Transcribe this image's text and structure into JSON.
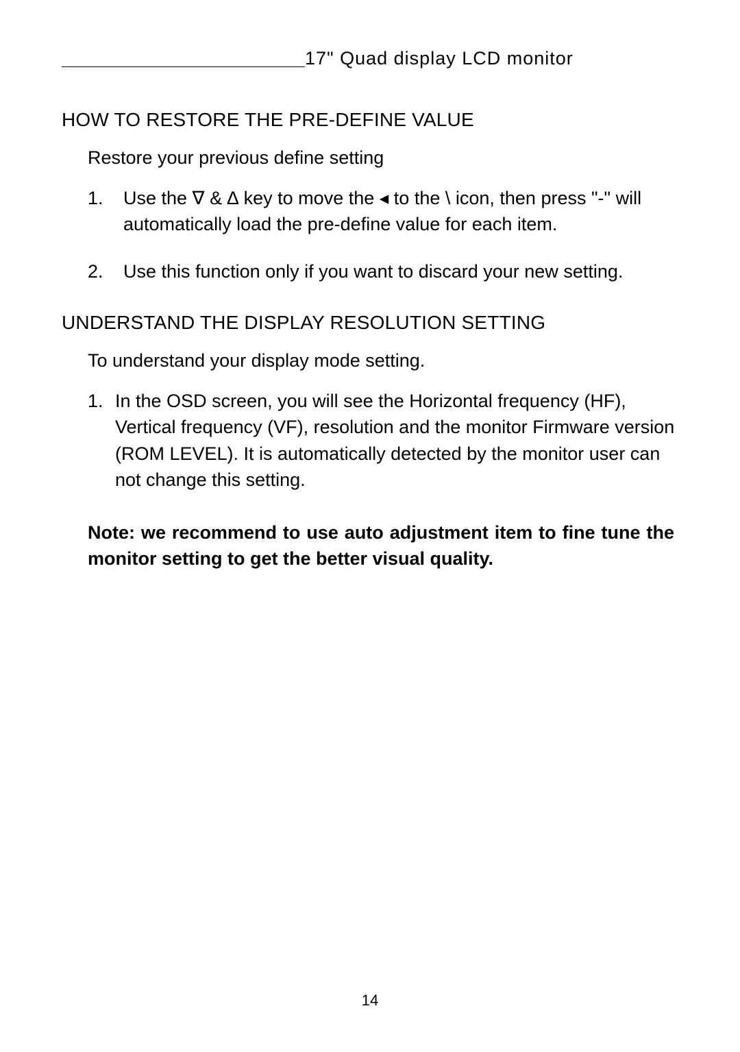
{
  "header": {
    "title": "17\" Quad display LCD monitor"
  },
  "sections": [
    {
      "heading": "HOW TO RESTORE THE PRE-DEFINE VALUE",
      "intro": "Restore your previous define setting",
      "items": [
        {
          "num": "1.",
          "text": "Use the ∇ & ∆ key to move the ◂ to the    \\     icon, then press \"-\"  will automatically load the pre-define value for each item."
        },
        {
          "num": "2.",
          "text": "Use this function only if you want to discard your new setting."
        }
      ]
    },
    {
      "heading": "UNDERSTAND THE DISPLAY RESOLUTION SETTING",
      "intro": "To understand your display mode setting.",
      "items": [
        {
          "num": "1.",
          "text": "In the OSD screen, you will see the Horizontal frequency (HF), Vertical frequency (VF), resolution and the monitor Firmware version (ROM LEVEL). It is automatically detected by the monitor user can not change this setting."
        }
      ]
    }
  ],
  "note": "Note: we recommend to use auto adjustment item to fine tune the monitor setting to get the better visual quality.",
  "page_number": "14"
}
